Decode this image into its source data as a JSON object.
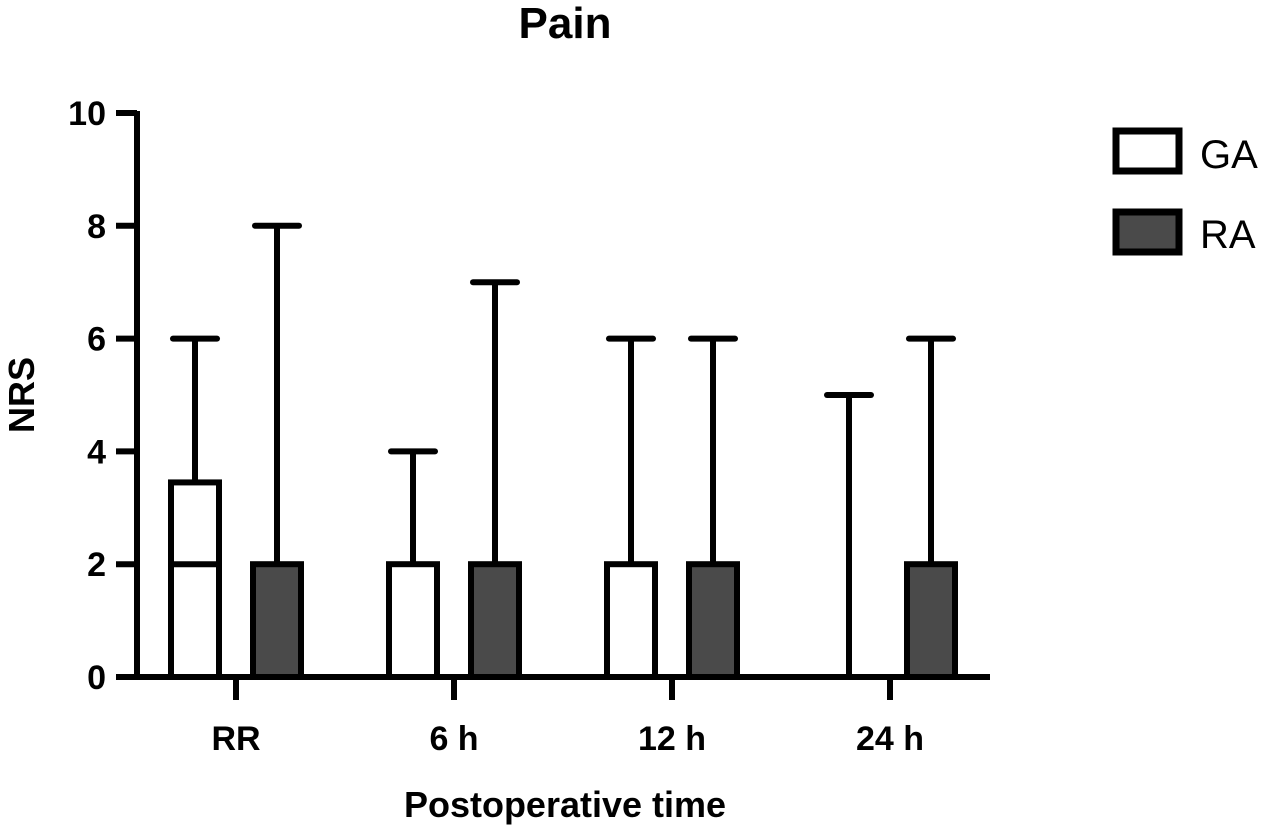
{
  "chart_data": {
    "type": "bar",
    "title": "Pain",
    "xlabel": "Postoperative time",
    "ylabel": "NRS",
    "ylim": [
      0,
      10
    ],
    "yticks": [
      0,
      2,
      4,
      6,
      8,
      10
    ],
    "categories": [
      "RR",
      "6 h",
      "12 h",
      "24 h"
    ],
    "legend_position": "top-right",
    "series": [
      {
        "name": "GA",
        "color": "#ffffff",
        "values": [
          3.45,
          2,
          2,
          0
        ],
        "median": [
          2,
          2,
          2,
          0
        ],
        "error_max": [
          6,
          4,
          6,
          5
        ]
      },
      {
        "name": "RA",
        "color": "#4a4a4a",
        "values": [
          2,
          2,
          2,
          2
        ],
        "median": [
          2,
          2,
          2,
          2
        ],
        "error_max": [
          8,
          7,
          6,
          6
        ]
      }
    ],
    "grid": false
  }
}
